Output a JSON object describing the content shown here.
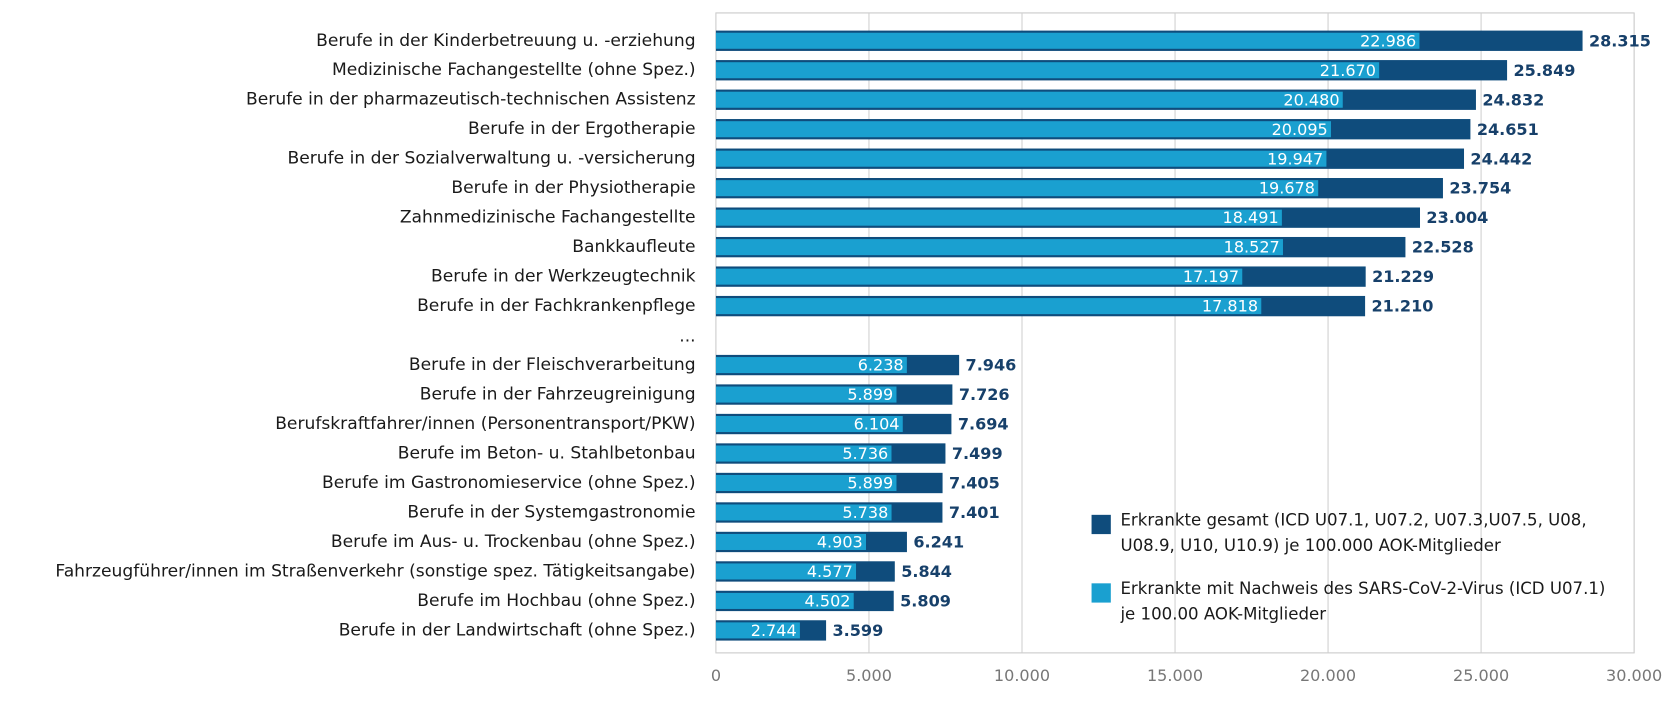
{
  "chart_data": {
    "type": "bar",
    "orientation": "horizontal",
    "categories": [
      "Berufe in der Kinderbetreuung u. -erziehung",
      "Medizinische Fachangestellte (ohne Spez.)",
      "Berufe in der pharmazeutisch-technischen Assistenz",
      "Berufe in der Ergotherapie",
      "Berufe in der Sozialverwaltung u. -versicherung",
      "Berufe in der Physiotherapie",
      "Zahnmedizinische Fachangestellte",
      "Bankkaufleute",
      "Berufe in der Werkzeugtechnik",
      "Berufe in der Fachkrankenpflege",
      "...",
      "Berufe in der Fleischverarbeitung",
      "Berufe in der Fahrzeugreinigung",
      "Berufskraftfahrer/innen (Personentransport/PKW)",
      "Berufe im Beton- u. Stahlbetonbau",
      "Berufe im Gastronomieservice (ohne Spez.)",
      "Berufe in der Systemgastronomie",
      "Berufe im Aus- u. Trockenbau (ohne Spez.)",
      "Fahrzeugführer/innen im Straßenverkehr (sonstige spez. Tätigkeitsangabe)",
      "Berufe im Hochbau (ohne Spez.)",
      "Berufe in der Landwirtschaft (ohne Spez.)"
    ],
    "series": [
      {
        "name": "Erkrankte gesamt  (ICD U07.1, U07.2, U07.3,U07.5, U08, U08.9, U10, U10.9) je 100.000 AOK-Mitglieder",
        "color": "#0f4c7c",
        "values": [
          28315,
          25849,
          24832,
          24651,
          24442,
          23754,
          23004,
          22528,
          21229,
          21210,
          null,
          7946,
          7726,
          7694,
          7499,
          7405,
          7401,
          6241,
          5844,
          5809,
          3599
        ],
        "value_labels": [
          "28.315",
          "25.849",
          "24.832",
          "24.651",
          "24.442",
          "23.754",
          "23.004",
          "22.528",
          "21.229",
          "21.210",
          null,
          "7.946",
          "7.726",
          "7.694",
          "7.499",
          "7.405",
          "7.401",
          "6.241",
          "5.844",
          "5.809",
          "3.599"
        ]
      },
      {
        "name": "Erkrankte mit Nachweis des SARS-CoV-2-Virus (ICD U07.1) je 100.00 AOK-Mitglieder",
        "color": "#1aa0d0",
        "values": [
          22986,
          21670,
          20480,
          20095,
          19947,
          19678,
          18491,
          18527,
          17197,
          17818,
          null,
          6238,
          5899,
          6104,
          5736,
          5899,
          5738,
          4903,
          4577,
          4502,
          2744
        ],
        "value_labels": [
          "22.986",
          "21.670",
          "20.480",
          "20.095",
          "19.947",
          "19.678",
          "18.491",
          "18.527",
          "17.197",
          "17.818",
          null,
          "6.238",
          "5.899",
          "6.104",
          "5.736",
          "5.899",
          "5.738",
          "4.903",
          "4.577",
          "4.502",
          "2.744"
        ]
      }
    ],
    "xlim": [
      0,
      30000
    ],
    "xticks": [
      0,
      {
        "value": 5000,
        "label": "5.000"
      },
      {
        "value": 10000,
        "label": "10.000"
      },
      {
        "value": 15000,
        "label": "15.000"
      },
      {
        "value": 20000,
        "label": "20.000"
      },
      {
        "value": 25000,
        "label": "25.000"
      },
      {
        "value": 30000,
        "label": "30.000"
      }
    ],
    "grid": true,
    "legend": "lower right"
  }
}
